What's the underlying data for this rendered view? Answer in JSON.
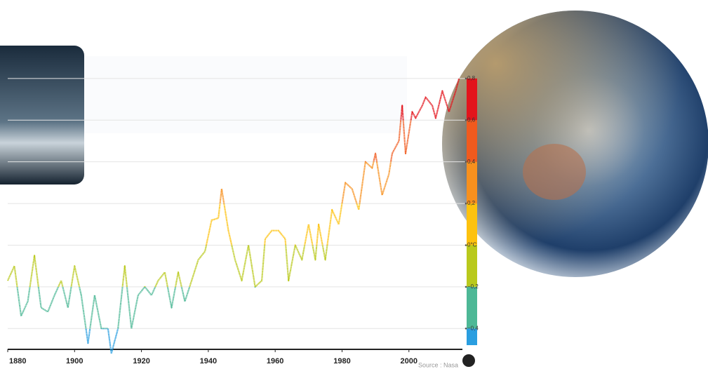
{
  "chart_data": {
    "type": "line",
    "x": [
      1880,
      1882,
      1884,
      1886,
      1888,
      1890,
      1892,
      1894,
      1896,
      1898,
      1900,
      1902,
      1904,
      1906,
      1908,
      1910,
      1911,
      1913,
      1915,
      1917,
      1919,
      1921,
      1923,
      1925,
      1927,
      1929,
      1931,
      1933,
      1935,
      1937,
      1939,
      1941,
      1943,
      1944,
      1946,
      1948,
      1950,
      1952,
      1954,
      1956,
      1957,
      1959,
      1961,
      1963,
      1964,
      1966,
      1968,
      1970,
      1972,
      1973,
      1975,
      1977,
      1979,
      1981,
      1983,
      1985,
      1987,
      1989,
      1990,
      1992,
      1994,
      1995,
      1997,
      1998,
      1999,
      2001,
      2002,
      2004,
      2005,
      2007,
      2008,
      2010,
      2012,
      2014,
      2015
    ],
    "values": [
      -0.17,
      -0.1,
      -0.34,
      -0.27,
      -0.05,
      -0.3,
      -0.32,
      -0.24,
      -0.17,
      -0.3,
      -0.1,
      -0.24,
      -0.47,
      -0.24,
      -0.4,
      -0.4,
      -0.52,
      -0.4,
      -0.1,
      -0.4,
      -0.24,
      -0.2,
      -0.24,
      -0.17,
      -0.13,
      -0.3,
      -0.13,
      -0.27,
      -0.17,
      -0.07,
      -0.03,
      0.12,
      0.13,
      0.27,
      0.07,
      -0.07,
      -0.17,
      0,
      -0.2,
      -0.17,
      0.03,
      0.07,
      0.07,
      0.03,
      -0.17,
      0,
      -0.07,
      0.1,
      -0.07,
      0.1,
      -0.07,
      0.17,
      0.1,
      0.3,
      0.27,
      0.17,
      0.4,
      0.37,
      0.44,
      0.24,
      0.34,
      0.44,
      0.5,
      0.67,
      0.44,
      0.64,
      0.61,
      0.67,
      0.71,
      0.67,
      0.61,
      0.74,
      0.64,
      0.74,
      0.8
    ],
    "xlim": [
      1880,
      2016
    ],
    "xticks": [
      1880,
      1900,
      1920,
      1940,
      1960,
      1980,
      2000
    ],
    "ylim": [
      -0.5,
      0.84
    ],
    "yticks": [
      {
        "value": 0.8,
        "label": "0,8"
      },
      {
        "value": 0.6,
        "label": "0,6"
      },
      {
        "value": 0.4,
        "label": "0,4"
      },
      {
        "value": 0.2,
        "label": "0,2"
      },
      {
        "value": 0,
        "label": "0°C"
      },
      {
        "value": -0.2,
        "label": "−0,2"
      },
      {
        "value": -0.4,
        "label": "−0,4"
      }
    ],
    "band_colors": [
      "#e3141c",
      "#f05a1e",
      "#f7901e",
      "#fdc20f",
      "#b9c91c",
      "#4db896",
      "#2a9ee0"
    ],
    "grid": true,
    "source": "Source : Nasa"
  }
}
